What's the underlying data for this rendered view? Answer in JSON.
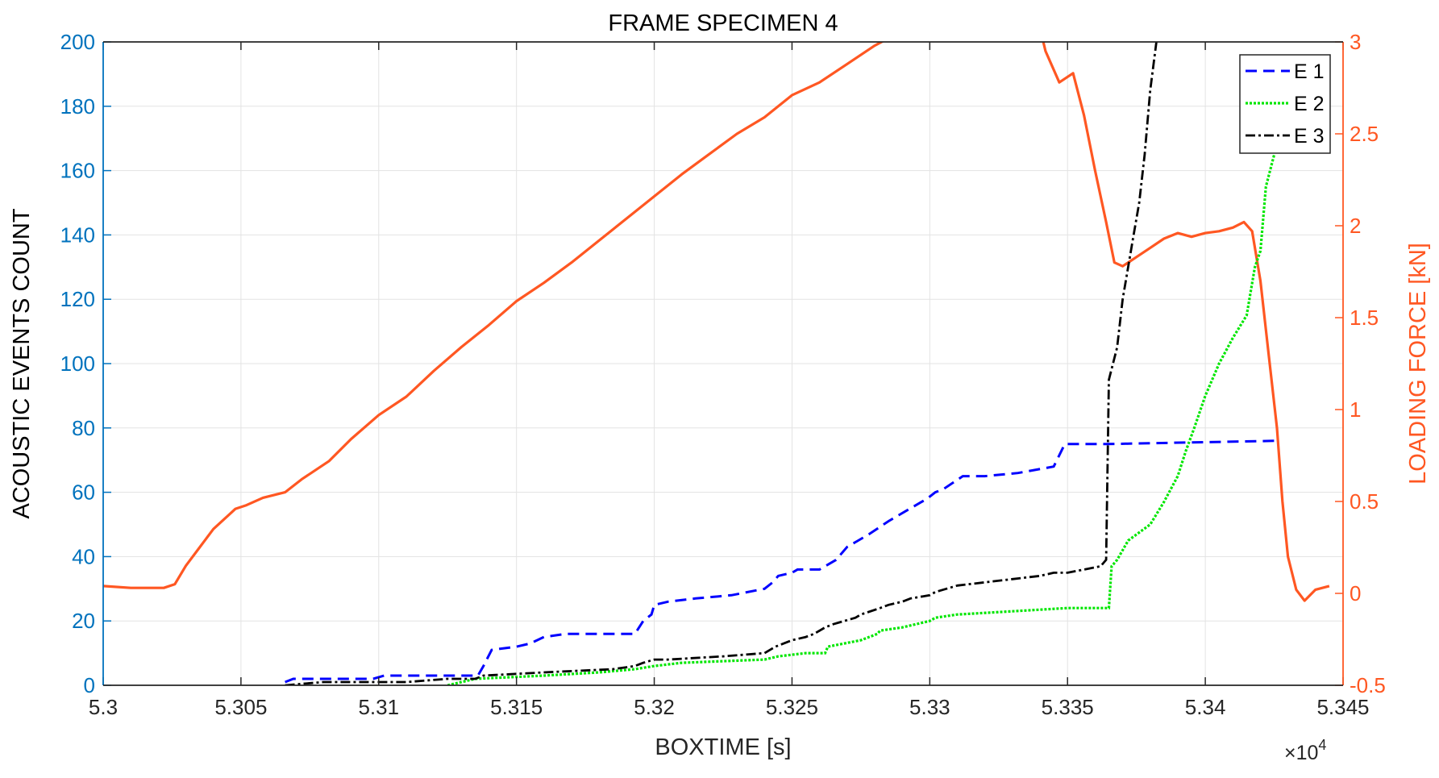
{
  "chart_data": {
    "type": "line",
    "title": "FRAME SPECIMEN 4",
    "xlabel": "BOXTIME [s]",
    "x_exponent_label": "×10",
    "x_exponent_power": "4",
    "ylabel_left": "ACOUSTIC EVENTS COUNT",
    "ylabel_right": "LOADING FORCE [kN]",
    "xlim": [
      5.3,
      5.345
    ],
    "ylim_left": [
      0,
      200
    ],
    "ylim_right": [
      -0.5,
      3
    ],
    "x_ticks": [
      5.3,
      5.305,
      5.31,
      5.315,
      5.32,
      5.325,
      5.33,
      5.335,
      5.34,
      5.345
    ],
    "x_tick_labels": [
      "5.3",
      "5.305",
      "5.31",
      "5.315",
      "5.32",
      "5.325",
      "5.33",
      "5.335",
      "5.34",
      "5.345"
    ],
    "y_left_ticks": [
      0,
      20,
      40,
      60,
      80,
      100,
      120,
      140,
      160,
      180,
      200
    ],
    "y_left_tick_labels": [
      "0",
      "20",
      "40",
      "60",
      "80",
      "100",
      "120",
      "140",
      "160",
      "180",
      "200"
    ],
    "y_right_ticks": [
      -0.5,
      0,
      0.5,
      1,
      1.5,
      2,
      2.5,
      3
    ],
    "y_right_tick_labels": [
      "-0.5",
      "0",
      "0.5",
      "1",
      "1.5",
      "2",
      "2.5",
      "3"
    ],
    "grid": true,
    "legend_position": "top-right",
    "colors": {
      "left_axis": "#0072BD",
      "right_axis": "#FF5722",
      "e1": "#0000FF",
      "e2": "#00E600",
      "e3": "#000000",
      "force": "#FF5722"
    },
    "series": [
      {
        "name": "E 1",
        "axis": "left",
        "style": "dashed",
        "x": [
          5.3066,
          5.3069,
          5.3072,
          5.3098,
          5.3102,
          5.3128,
          5.3132,
          5.3136,
          5.3138,
          5.3141,
          5.315,
          5.3155,
          5.316,
          5.3168,
          5.3173,
          5.3193,
          5.3196,
          5.3199,
          5.32,
          5.3205,
          5.3215,
          5.3228,
          5.324,
          5.3243,
          5.3245,
          5.325,
          5.3252,
          5.326,
          5.3266,
          5.327,
          5.3274,
          5.3278,
          5.3285,
          5.3289,
          5.3293,
          5.3299,
          5.3302,
          5.3305,
          5.3312,
          5.332,
          5.3332,
          5.3345,
          5.3349,
          5.3364,
          5.3425
        ],
        "y": [
          1,
          2,
          2,
          2,
          3,
          3,
          3,
          3,
          6,
          11,
          12,
          13,
          15,
          16,
          16,
          16,
          20,
          22,
          25,
          26,
          27,
          28,
          30,
          32,
          34,
          35,
          36,
          36,
          39,
          43,
          45,
          47,
          51,
          53,
          55,
          58,
          60,
          61,
          65,
          65,
          66,
          68,
          75,
          75,
          76
        ]
      },
      {
        "name": "E 2",
        "axis": "left",
        "style": "dotted",
        "x": [
          5.3125,
          5.3135,
          5.316,
          5.318,
          5.3193,
          5.32,
          5.321,
          5.324,
          5.3245,
          5.3255,
          5.3262,
          5.3263,
          5.3275,
          5.3281,
          5.3282,
          5.329,
          5.33,
          5.3302,
          5.331,
          5.333,
          5.335,
          5.3365,
          5.3366,
          5.3368,
          5.337,
          5.3372,
          5.338,
          5.3385,
          5.339,
          5.3393,
          5.3396,
          5.34,
          5.3405,
          5.341,
          5.3415,
          5.3418,
          5.342,
          5.3422,
          5.3425
        ],
        "y": [
          0,
          2,
          3,
          4,
          5,
          6,
          7,
          8,
          9,
          10,
          10,
          12,
          14,
          16,
          17,
          18,
          20,
          21,
          22,
          23,
          24,
          24,
          37,
          39,
          42,
          45,
          50,
          57,
          65,
          73,
          80,
          90,
          100,
          108,
          115,
          130,
          135,
          155,
          165
        ]
      },
      {
        "name": "E 3",
        "axis": "left",
        "style": "dashdot",
        "x": [
          5.3066,
          5.308,
          5.311,
          5.3125,
          5.3135,
          5.3138,
          5.316,
          5.3185,
          5.3193,
          5.3196,
          5.32,
          5.3205,
          5.3225,
          5.324,
          5.3244,
          5.325,
          5.3255,
          5.3258,
          5.3262,
          5.3265,
          5.3273,
          5.3275,
          5.3282,
          5.3285,
          5.329,
          5.3293,
          5.33,
          5.3302,
          5.331,
          5.332,
          5.333,
          5.334,
          5.3345,
          5.335,
          5.3362,
          5.3364,
          5.3365,
          5.3368,
          5.337,
          5.3372,
          5.3374,
          5.3376,
          5.3378,
          5.338,
          5.3383
        ],
        "y": [
          0,
          1,
          1,
          2,
          2,
          3,
          4,
          5,
          6,
          7,
          8,
          8,
          9,
          10,
          12,
          14,
          15,
          16,
          18,
          19,
          21,
          22,
          24,
          25,
          26,
          27,
          28,
          29,
          31,
          32,
          33,
          34,
          35,
          35,
          37,
          39,
          95,
          105,
          120,
          130,
          140,
          150,
          165,
          185,
          205
        ]
      },
      {
        "name": "Loading force",
        "axis": "right",
        "style": "solid",
        "x": [
          5.3,
          5.301,
          5.3022,
          5.3026,
          5.303,
          5.3035,
          5.304,
          5.3048,
          5.3052,
          5.3058,
          5.3066,
          5.3072,
          5.3082,
          5.309,
          5.31,
          5.311,
          5.312,
          5.313,
          5.314,
          5.315,
          5.316,
          5.317,
          5.318,
          5.319,
          5.32,
          5.321,
          5.322,
          5.323,
          5.324,
          5.325,
          5.326,
          5.327,
          5.328,
          5.329,
          5.33,
          5.331,
          5.332,
          5.3328,
          5.3334,
          5.3338,
          5.3342,
          5.3347,
          5.3352,
          5.3356,
          5.336,
          5.3364,
          5.3367,
          5.337,
          5.3375,
          5.338,
          5.3385,
          5.339,
          5.3395,
          5.34,
          5.3405,
          5.341,
          5.3414,
          5.3417,
          5.342,
          5.3423,
          5.3426,
          5.3428,
          5.343,
          5.3433,
          5.3436,
          5.344,
          5.3445
        ],
        "y": [
          0.04,
          0.03,
          0.03,
          0.05,
          0.15,
          0.25,
          0.35,
          0.46,
          0.48,
          0.52,
          0.55,
          0.62,
          0.72,
          0.84,
          0.97,
          1.07,
          1.21,
          1.34,
          1.46,
          1.59,
          1.69,
          1.8,
          1.92,
          2.04,
          2.16,
          2.28,
          2.39,
          2.5,
          2.59,
          2.71,
          2.78,
          2.88,
          2.98,
          3.06,
          3.13,
          3.2,
          3.24,
          3.28,
          3.33,
          3.2,
          2.95,
          2.78,
          2.83,
          2.6,
          2.3,
          2.02,
          1.8,
          1.78,
          1.83,
          1.88,
          1.93,
          1.96,
          1.94,
          1.96,
          1.97,
          1.99,
          2.02,
          1.97,
          1.7,
          1.3,
          0.9,
          0.5,
          0.2,
          0.02,
          -0.04,
          0.02,
          0.04
        ]
      }
    ]
  }
}
